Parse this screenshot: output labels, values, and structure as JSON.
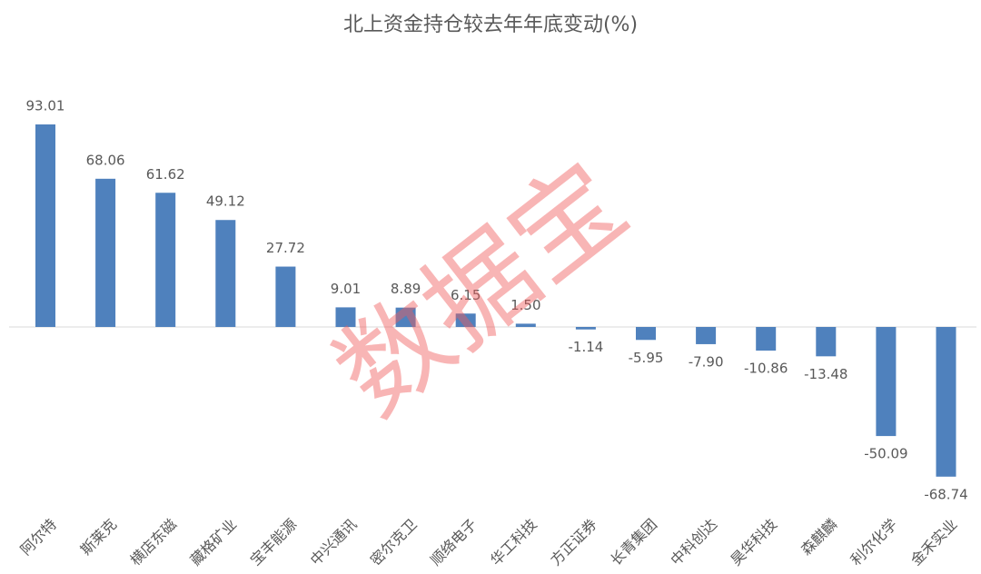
{
  "chart_data": {
    "type": "bar",
    "title": "北上资金持仓较去年年底变动(%)",
    "categories": [
      "阿尔特",
      "斯莱克",
      "横店东磁",
      "藏格矿业",
      "宝丰能源",
      "中兴通讯",
      "密尔克卫",
      "顺络电子",
      "华工科技",
      "方正证券",
      "长青集团",
      "中科创达",
      "昊华科技",
      "森麒麟",
      "利尔化学",
      "金禾实业"
    ],
    "values": [
      93.01,
      68.06,
      61.62,
      49.12,
      27.72,
      9.01,
      8.89,
      6.15,
      1.5,
      -1.14,
      -5.95,
      -7.9,
      -10.86,
      -13.48,
      -50.09,
      -68.74
    ],
    "value_labels": [
      "93.01",
      "68.06",
      "61.62",
      "49.12",
      "27.72",
      "9.01",
      "8.89",
      "6.15",
      "1.50",
      "-1.14",
      "-5.95",
      "-7.90",
      "-10.86",
      "-13.48",
      "-50.09",
      "-68.74"
    ],
    "color": "#4f81bd",
    "watermark": "数据宝"
  }
}
